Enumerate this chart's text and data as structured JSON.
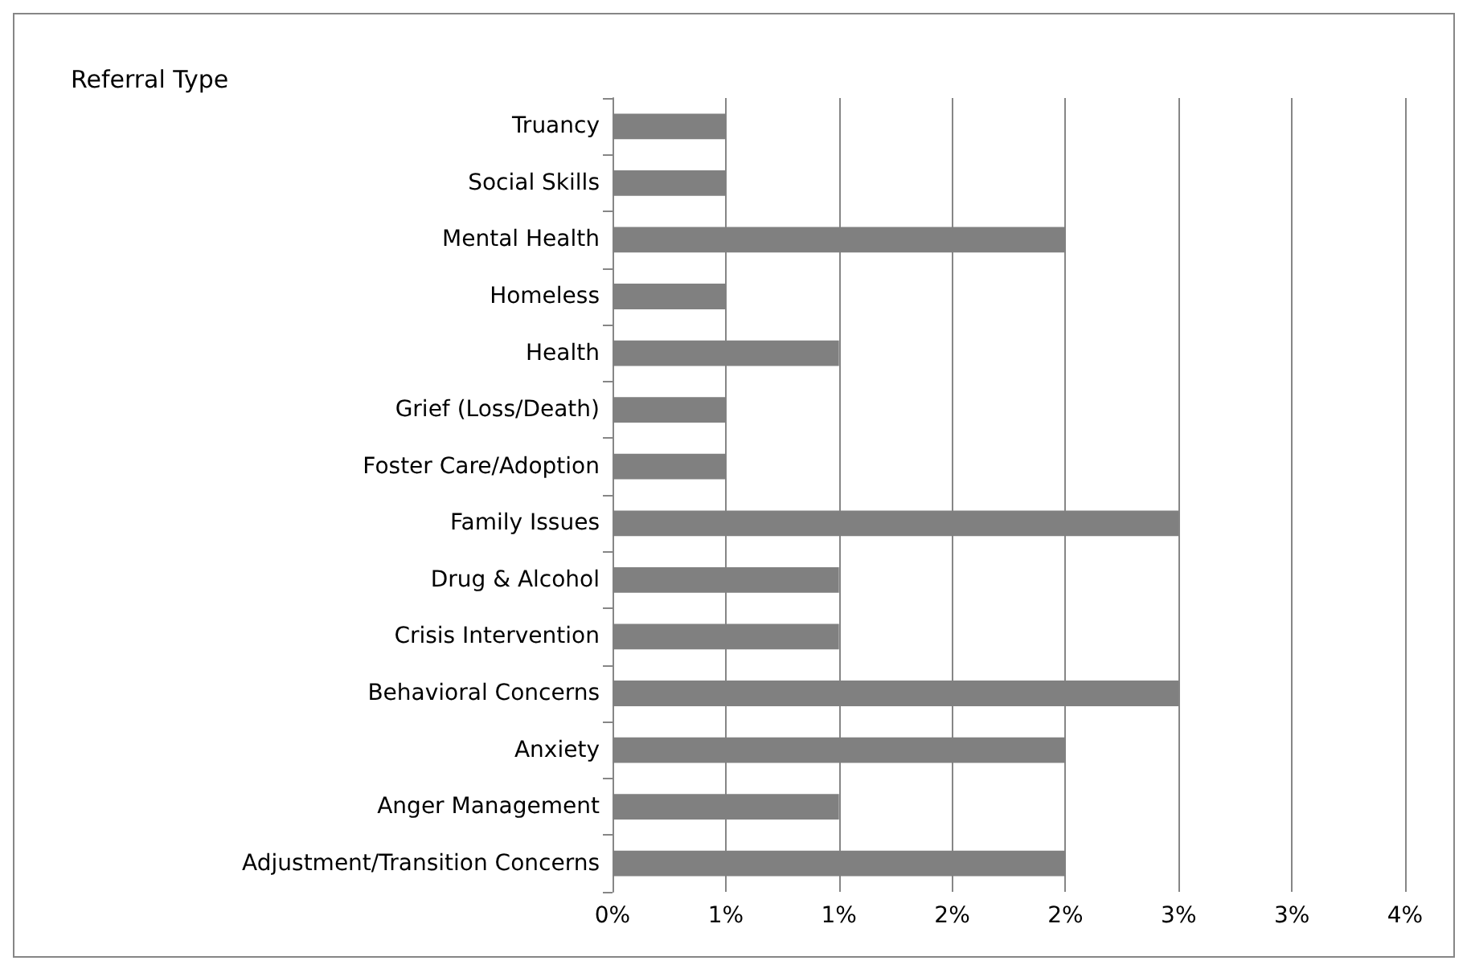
{
  "chart_data": {
    "type": "bar",
    "orientation": "horizontal",
    "title": "Referral Type",
    "categories": [
      "Truancy",
      "Social Skills",
      "Mental Health",
      "Homeless",
      "Health",
      "Grief (Loss/Death)",
      "Foster Care/Adoption",
      "Family Issues",
      "Drug & Alcohol",
      "Crisis Intervention",
      "Behavioral Concerns",
      "Anxiety",
      "Anger Management",
      "Adjustment/Transition Concerns"
    ],
    "values": [
      0.5,
      0.5,
      2.0,
      0.5,
      1.0,
      0.5,
      0.5,
      2.5,
      1.0,
      1.0,
      2.5,
      2.0,
      1.0,
      2.0
    ],
    "color": "#808080",
    "xlim": [
      0,
      3.5
    ],
    "xticks": [
      {
        "value": 0,
        "label": "0%"
      },
      {
        "value": 0.5,
        "label": "1%"
      },
      {
        "value": 1,
        "label": "1%"
      },
      {
        "value": 1.5,
        "label": "2%"
      },
      {
        "value": 2,
        "label": "2%"
      },
      {
        "value": 2.5,
        "label": "3%"
      },
      {
        "value": 3,
        "label": "3%"
      },
      {
        "value": 3.5,
        "label": "4%"
      }
    ],
    "grid": "x"
  }
}
